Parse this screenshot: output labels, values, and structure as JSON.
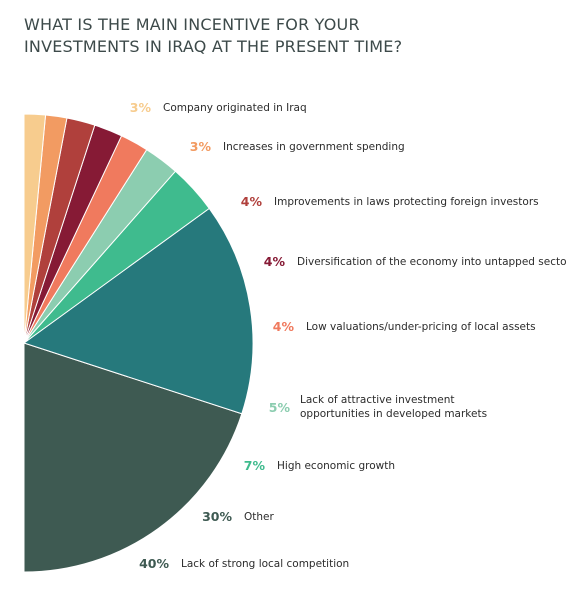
{
  "chart_data": {
    "type": "pie",
    "title": "WHAT IS THE MAIN INCENTIVE FOR YOUR INVESTMENTS IN IRAQ AT THE PRESENT TIME?",
    "slices": [
      {
        "label": "Lack of strong local competition",
        "value": 40,
        "display": "40%",
        "color": "#3e5a52"
      },
      {
        "label": "Other",
        "value": 30,
        "display": "30%",
        "color": "#26797c"
      },
      {
        "label": "High economic growth",
        "value": 7,
        "display": "7%",
        "color": "#3fbb8e"
      },
      {
        "label": "Lack of attractive investment opportunities in developed markets",
        "value": 5,
        "display": "5%",
        "color": "#8ccdb0"
      },
      {
        "label": "Low valuations/under-pricing of local assets",
        "value": 4,
        "display": "4%",
        "color": "#f07a5e"
      },
      {
        "label": "Diversification of the economy into untapped sectors",
        "value": 4,
        "display": "4%",
        "color": "#861a35"
      },
      {
        "label": "Improvements in laws protecting foreign investors",
        "value": 4,
        "display": "4%",
        "color": "#b0403c"
      },
      {
        "label": "Increases in government spending",
        "value": 3,
        "display": "3%",
        "color": "#f29b62"
      },
      {
        "label": "Company originated in Iraq",
        "value": 3,
        "display": "3%",
        "color": "#f7cc8e"
      }
    ],
    "legend_placement": "right"
  }
}
